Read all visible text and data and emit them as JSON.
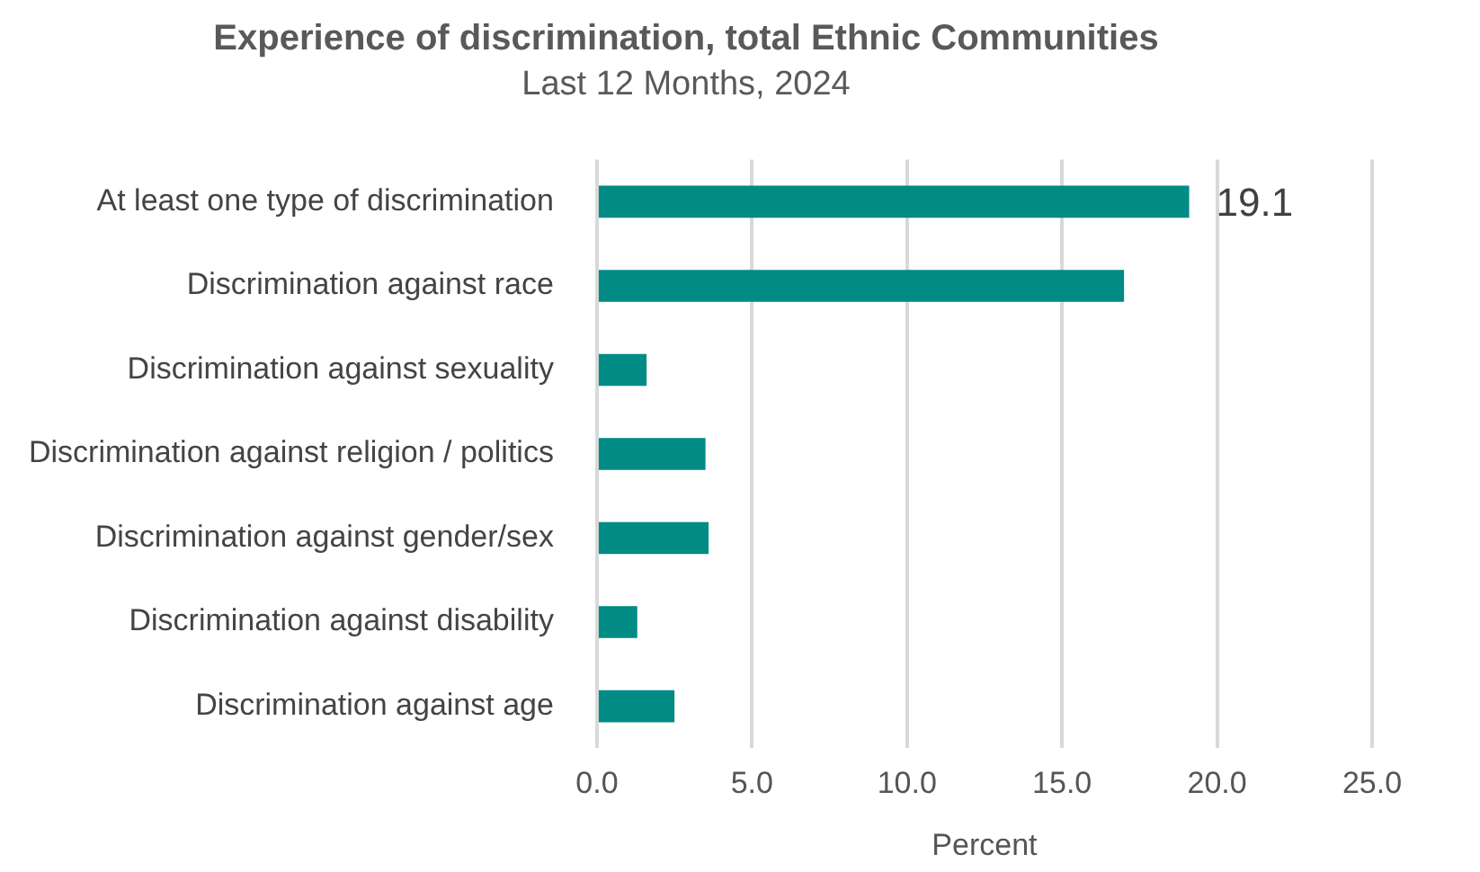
{
  "chart_data": {
    "type": "bar",
    "orientation": "horizontal",
    "title": "Experience of discrimination, total Ethnic Communities",
    "subtitle": "Last 12 Months, 2024",
    "xlabel": "Percent",
    "categories": [
      "At least one type of discrimination",
      "Discrimination against race",
      "Discrimination against sexuality",
      "Discrimination against religion / politics",
      "Discrimination against gender/sex",
      "Discrimination against disability",
      "Discrimination against age"
    ],
    "values": [
      19.1,
      17.0,
      1.6,
      3.5,
      3.6,
      1.3,
      2.5
    ],
    "value_labels": [
      "19.1",
      null,
      null,
      null,
      null,
      null,
      null
    ],
    "color": "#008b84",
    "xlim": [
      0,
      25
    ],
    "xticks": [
      {
        "value": 0,
        "label": "0.0"
      },
      {
        "value": 5,
        "label": "5.0"
      },
      {
        "value": 10,
        "label": "10.0"
      },
      {
        "value": 15,
        "label": "15.0"
      },
      {
        "value": 20,
        "label": "20.0"
      },
      {
        "value": 25,
        "label": "25.0"
      }
    ],
    "grid": "x",
    "legend": false
  }
}
